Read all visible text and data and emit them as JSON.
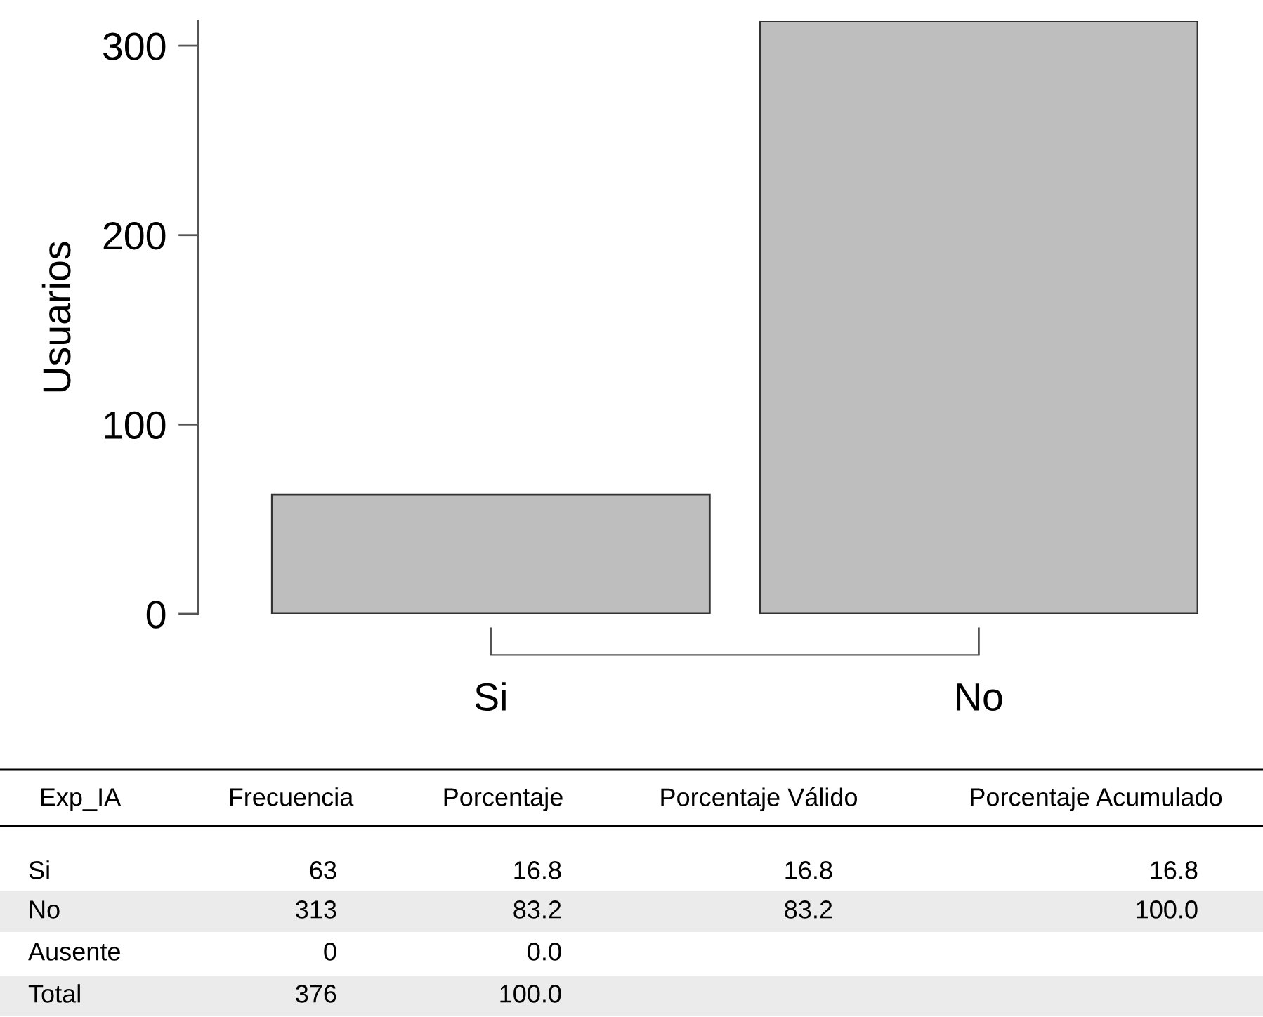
{
  "chart_data": [
    {
      "type": "bar",
      "ylabel": "Usuarios",
      "categories": [
        "Si",
        "No"
      ],
      "values": [
        63,
        313
      ],
      "color": "#bebebe",
      "ylim": [
        0,
        313
      ],
      "yticks": [
        0,
        100,
        200,
        300
      ],
      "grid": false
    },
    {
      "type": "other",
      "categories": [
        "Exp_IA",
        "Frecuencia",
        "Porcentaje",
        "Porcentaje Válido",
        "Porcentaje Acumulado"
      ],
      "y_categories": [
        "Si",
        "No",
        "Ausente",
        "Total"
      ],
      "cell_labels": [
        [
          "63",
          "16.8",
          "16.8",
          "16.8"
        ],
        [
          "313",
          "83.2",
          "83.2",
          "100.0"
        ],
        [
          "0",
          "0.0",
          null,
          null
        ],
        [
          "376",
          "100.0",
          null,
          null
        ]
      ]
    }
  ]
}
